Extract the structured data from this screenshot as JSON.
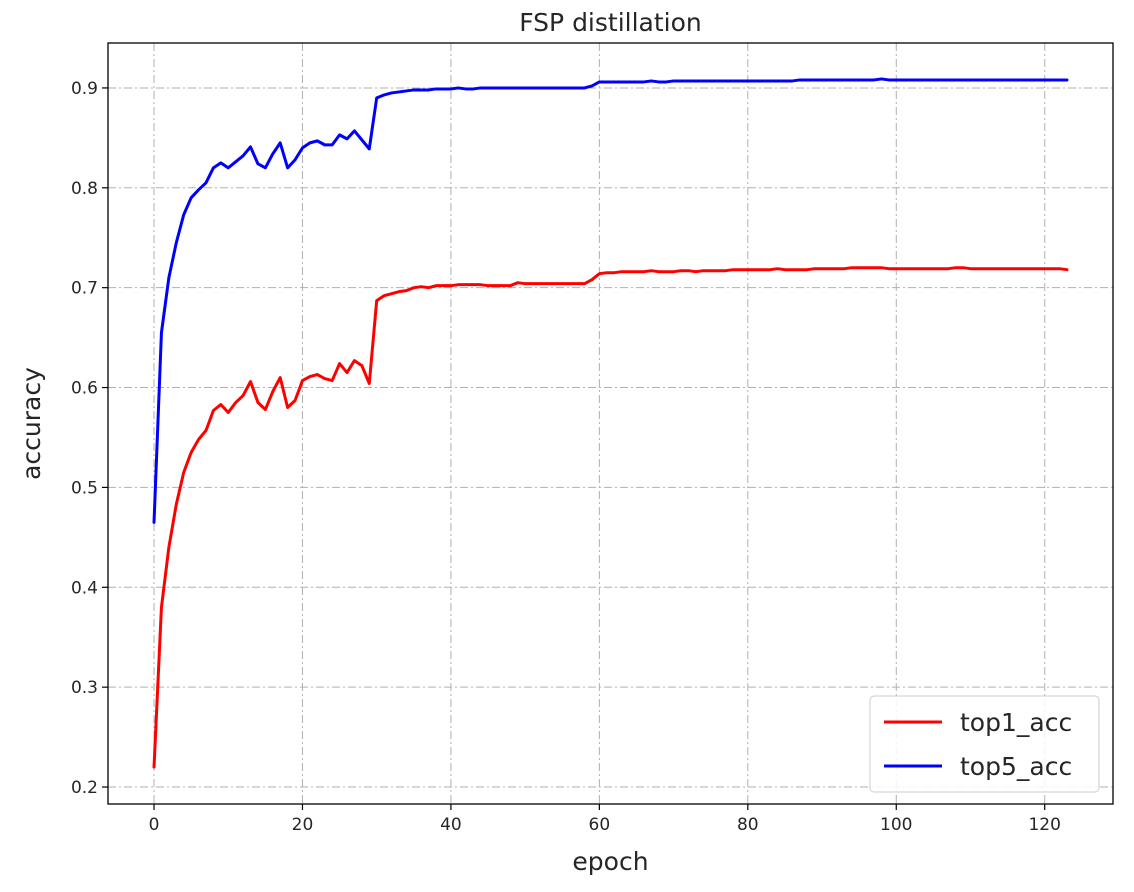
{
  "chart_data": {
    "type": "line",
    "title": "FSP distillation",
    "xlabel": "epoch",
    "ylabel": "accuracy",
    "xlim": [
      -6.2,
      129.2
    ],
    "ylim": [
      0.183,
      0.945
    ],
    "xticks": [
      0,
      20,
      40,
      60,
      80,
      100,
      120
    ],
    "yticks": [
      0.2,
      0.3,
      0.4,
      0.5,
      0.6,
      0.7,
      0.8,
      0.9
    ],
    "grid": true,
    "grid_style": "dashdot",
    "legend_position": "lower right",
    "x": [
      0,
      1,
      2,
      3,
      4,
      5,
      6,
      7,
      8,
      9,
      10,
      11,
      12,
      13,
      14,
      15,
      16,
      17,
      18,
      19,
      20,
      21,
      22,
      23,
      24,
      25,
      26,
      27,
      28,
      29,
      30,
      31,
      32,
      33,
      34,
      35,
      36,
      37,
      38,
      39,
      40,
      41,
      42,
      43,
      44,
      45,
      46,
      47,
      48,
      49,
      50,
      51,
      52,
      53,
      54,
      55,
      56,
      57,
      58,
      59,
      60,
      61,
      62,
      63,
      64,
      65,
      66,
      67,
      68,
      69,
      70,
      71,
      72,
      73,
      74,
      75,
      76,
      77,
      78,
      79,
      80,
      81,
      82,
      83,
      84,
      85,
      86,
      87,
      88,
      89,
      90,
      91,
      92,
      93,
      94,
      95,
      96,
      97,
      98,
      99,
      100,
      101,
      102,
      103,
      104,
      105,
      106,
      107,
      108,
      109,
      110,
      111,
      112,
      113,
      114,
      115,
      116,
      117,
      118,
      119,
      120,
      121,
      122,
      123
    ],
    "series": [
      {
        "name": "top1_acc",
        "color": "#ff0000",
        "values": [
          0.22,
          0.38,
          0.44,
          0.483,
          0.515,
          0.535,
          0.548,
          0.557,
          0.577,
          0.583,
          0.575,
          0.585,
          0.592,
          0.606,
          0.585,
          0.578,
          0.596,
          0.61,
          0.58,
          0.587,
          0.607,
          0.611,
          0.613,
          0.609,
          0.607,
          0.624,
          0.615,
          0.627,
          0.622,
          0.604,
          0.687,
          0.692,
          0.694,
          0.696,
          0.697,
          0.7,
          0.701,
          0.7,
          0.702,
          0.702,
          0.702,
          0.703,
          0.703,
          0.703,
          0.703,
          0.702,
          0.702,
          0.702,
          0.702,
          0.705,
          0.704,
          0.704,
          0.704,
          0.704,
          0.704,
          0.704,
          0.704,
          0.704,
          0.704,
          0.708,
          0.714,
          0.715,
          0.715,
          0.716,
          0.716,
          0.716,
          0.716,
          0.717,
          0.716,
          0.716,
          0.716,
          0.717,
          0.717,
          0.716,
          0.717,
          0.717,
          0.717,
          0.717,
          0.718,
          0.718,
          0.718,
          0.718,
          0.718,
          0.718,
          0.719,
          0.718,
          0.718,
          0.718,
          0.718,
          0.719,
          0.719,
          0.719,
          0.719,
          0.719,
          0.72,
          0.72,
          0.72,
          0.72,
          0.72,
          0.719,
          0.719,
          0.719,
          0.719,
          0.719,
          0.719,
          0.719,
          0.719,
          0.719,
          0.72,
          0.72,
          0.719,
          0.719,
          0.719,
          0.719,
          0.719,
          0.719,
          0.719,
          0.719,
          0.719,
          0.719,
          0.719,
          0.719,
          0.719,
          0.718
        ]
      },
      {
        "name": "top5_acc",
        "color": "#0000ff",
        "values": [
          0.465,
          0.655,
          0.71,
          0.745,
          0.773,
          0.79,
          0.798,
          0.805,
          0.82,
          0.825,
          0.82,
          0.826,
          0.832,
          0.841,
          0.824,
          0.82,
          0.834,
          0.845,
          0.82,
          0.828,
          0.84,
          0.845,
          0.847,
          0.843,
          0.843,
          0.853,
          0.849,
          0.857,
          0.848,
          0.839,
          0.89,
          0.893,
          0.895,
          0.896,
          0.897,
          0.898,
          0.898,
          0.898,
          0.899,
          0.899,
          0.899,
          0.9,
          0.899,
          0.899,
          0.9,
          0.9,
          0.9,
          0.9,
          0.9,
          0.9,
          0.9,
          0.9,
          0.9,
          0.9,
          0.9,
          0.9,
          0.9,
          0.9,
          0.9,
          0.902,
          0.906,
          0.906,
          0.906,
          0.906,
          0.906,
          0.906,
          0.906,
          0.907,
          0.906,
          0.906,
          0.907,
          0.907,
          0.907,
          0.907,
          0.907,
          0.907,
          0.907,
          0.907,
          0.907,
          0.907,
          0.907,
          0.907,
          0.907,
          0.907,
          0.907,
          0.907,
          0.907,
          0.908,
          0.908,
          0.908,
          0.908,
          0.908,
          0.908,
          0.908,
          0.908,
          0.908,
          0.908,
          0.908,
          0.909,
          0.908,
          0.908,
          0.908,
          0.908,
          0.908,
          0.908,
          0.908,
          0.908,
          0.908,
          0.908,
          0.908,
          0.908,
          0.908,
          0.908,
          0.908,
          0.908,
          0.908,
          0.908,
          0.908,
          0.908,
          0.908,
          0.908,
          0.908,
          0.908,
          0.908
        ]
      }
    ]
  }
}
